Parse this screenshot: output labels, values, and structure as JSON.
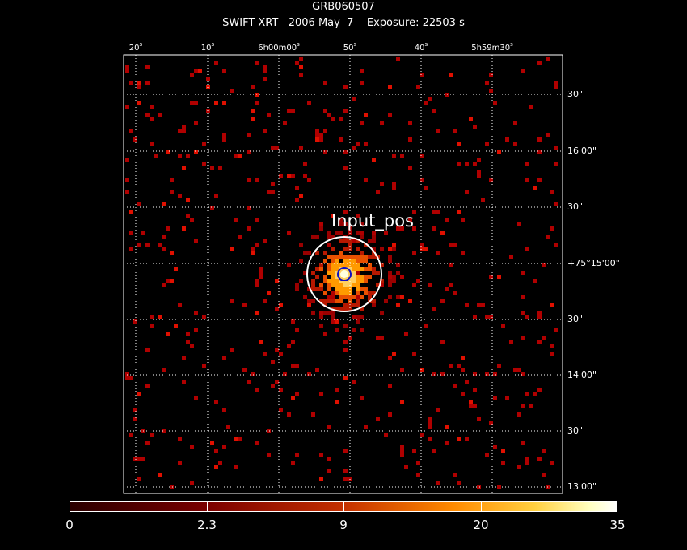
{
  "title": "GRB060507",
  "subtitle": "SWIFT XRT   2006 May  7    Exposure: 22503 s",
  "ra_labels": [
    {
      "text": "20",
      "unit": "s"
    },
    {
      "text": "10",
      "unit": "s"
    },
    {
      "text": "6h00m00",
      "unit": "s"
    },
    {
      "text": "50",
      "unit": "s"
    },
    {
      "text": "40",
      "unit": "s"
    },
    {
      "text": "5h59m30",
      "unit": "s"
    }
  ],
  "dec_labels": [
    "30\"",
    "16'00\"",
    "30\"",
    "+75°15'00\"",
    "30\"",
    "14'00\"",
    "30\"",
    "13'00\""
  ],
  "source_label": "Input_pos",
  "colorbar": {
    "labels": [
      "0",
      "2.3",
      "9",
      "20",
      "35"
    ],
    "colors": [
      "#2a0000",
      "#7a0000",
      "#c43000",
      "#ff8a00",
      "#ffd040",
      "#ffffc0",
      "#ffffff"
    ]
  },
  "colors": {
    "grid": "#ffffff",
    "circle": "#ffffff",
    "inner_circle": "#1010c0",
    "pixel": "#b00000"
  }
}
